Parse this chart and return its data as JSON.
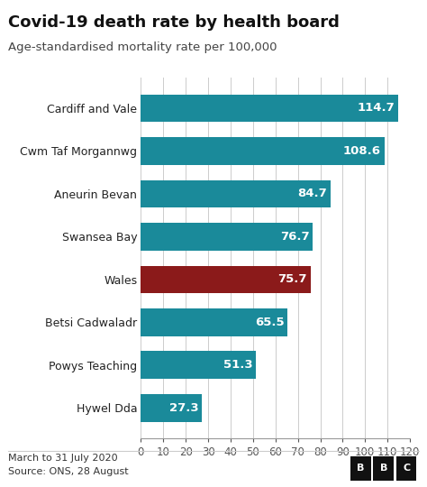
{
  "title": "Covid-19 death rate by health board",
  "subtitle": "Age-standardised mortality rate per 100,000",
  "categories": [
    "Cardiff and Vale",
    "Cwm Taf Morgannwg",
    "Aneurin Bevan",
    "Swansea Bay",
    "Wales",
    "Betsi Cadwaladr",
    "Powys Teaching",
    "Hywel Dda"
  ],
  "values": [
    114.7,
    108.6,
    84.7,
    76.7,
    75.7,
    65.5,
    51.3,
    27.3
  ],
  "bar_colors": [
    "#1a8a9a",
    "#1a8a9a",
    "#1a8a9a",
    "#1a8a9a",
    "#8b1a1a",
    "#1a8a9a",
    "#1a8a9a",
    "#1a8a9a"
  ],
  "xlim": [
    0,
    120
  ],
  "xticks": [
    0,
    10,
    20,
    30,
    40,
    50,
    60,
    70,
    80,
    90,
    100,
    110,
    120
  ],
  "footnote_line1": "March to 31 July 2020",
  "footnote_line2": "Source: ONS, 28 August",
  "footnote_right": "BBC",
  "background_color": "#ffffff",
  "title_fontsize": 13,
  "subtitle_fontsize": 9.5,
  "label_fontsize": 9,
  "value_fontsize": 9.5,
  "bar_height": 0.65
}
